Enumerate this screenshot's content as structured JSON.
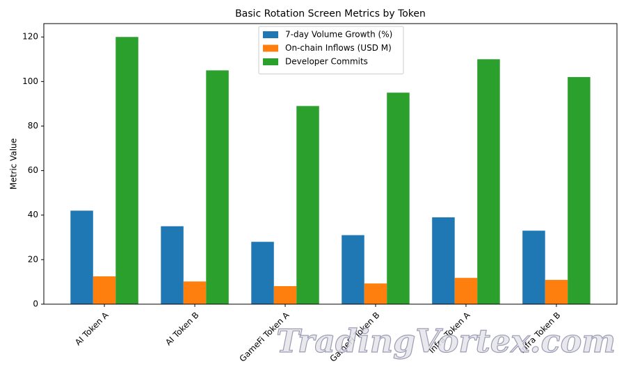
{
  "chart_data": {
    "type": "bar",
    "title": "Basic Rotation Screen Metrics by Token",
    "y_label": "Metric Value",
    "categories": [
      "AI Token A",
      "AI Token B",
      "GameFi Token A",
      "GameFi Token B",
      "Infra Token A",
      "Infra Token B"
    ],
    "series": [
      {
        "name": "7-day Volume Growth (%)",
        "color": "#1f77b4",
        "values": [
          42,
          35,
          28,
          31,
          39,
          33
        ]
      },
      {
        "name": "On-chain Inflows (USD M)",
        "color": "#ff7f0e",
        "values": [
          12.5,
          10.2,
          8.1,
          9.3,
          11.8,
          10.9
        ]
      },
      {
        "name": "Developer Commits",
        "color": "#2ca02c",
        "values": [
          120,
          105,
          89,
          95,
          110,
          102
        ]
      }
    ],
    "ylim": [
      0,
      126
    ],
    "yticks": [
      0,
      20,
      40,
      60,
      80,
      100,
      120
    ],
    "grid": false,
    "legend": "upper center",
    "watermark": "TradingVortex.com"
  }
}
